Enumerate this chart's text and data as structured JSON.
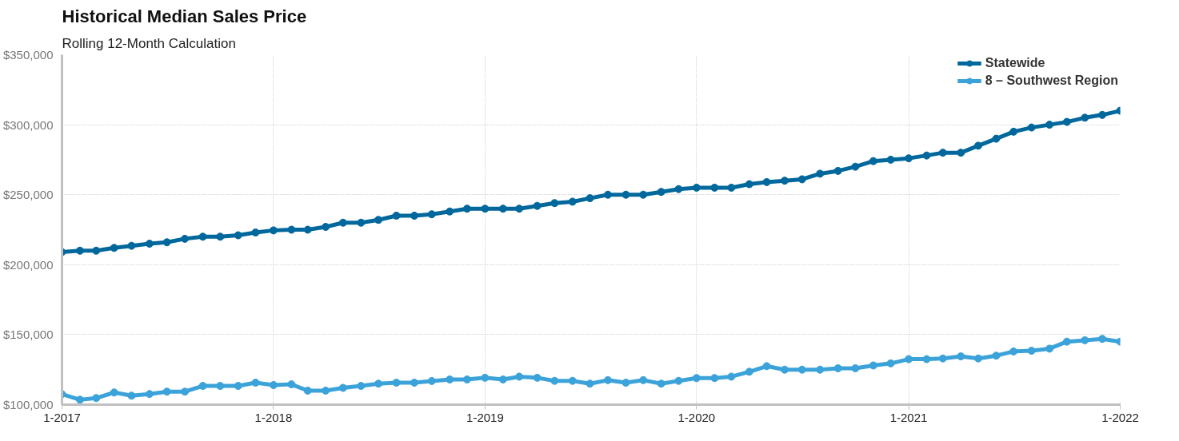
{
  "chart_data": {
    "type": "line",
    "title": "Historical Median Sales Price",
    "subtitle": "Rolling 12-Month Calculation",
    "x": [
      "2017-01",
      "2017-02",
      "2017-03",
      "2017-04",
      "2017-05",
      "2017-06",
      "2017-07",
      "2017-08",
      "2017-09",
      "2017-10",
      "2017-11",
      "2017-12",
      "2018-01",
      "2018-02",
      "2018-03",
      "2018-04",
      "2018-05",
      "2018-06",
      "2018-07",
      "2018-08",
      "2018-09",
      "2018-10",
      "2018-11",
      "2018-12",
      "2019-01",
      "2019-02",
      "2019-03",
      "2019-04",
      "2019-05",
      "2019-06",
      "2019-07",
      "2019-08",
      "2019-09",
      "2019-10",
      "2019-11",
      "2019-12",
      "2020-01",
      "2020-02",
      "2020-03",
      "2020-04",
      "2020-05",
      "2020-06",
      "2020-07",
      "2020-08",
      "2020-09",
      "2020-10",
      "2020-11",
      "2020-12",
      "2021-01",
      "2021-02",
      "2021-03",
      "2021-04",
      "2021-05",
      "2021-06",
      "2021-07",
      "2021-08",
      "2021-09",
      "2021-10",
      "2021-11",
      "2021-12",
      "2022-01"
    ],
    "series": [
      {
        "name": "Statewide",
        "color": "#00689c",
        "values": [
          209000,
          210000,
          210000,
          212000,
          213500,
          215000,
          216000,
          218500,
          220000,
          220000,
          221000,
          223000,
          224500,
          225000,
          225000,
          227000,
          230000,
          230000,
          232000,
          235000,
          235000,
          236000,
          238000,
          240000,
          240000,
          240000,
          240000,
          242000,
          244000,
          245000,
          247500,
          250000,
          250000,
          250000,
          252000,
          254000,
          255000,
          255000,
          255000,
          257500,
          259000,
          260000,
          261000,
          265000,
          267000,
          270000,
          274000,
          275000,
          276000,
          278000,
          280000,
          280000,
          285000,
          290000,
          295000,
          298000,
          300000,
          302000,
          305000,
          307000,
          310000
        ]
      },
      {
        "name": "8 – Southwest Region",
        "color": "#3ba3d9",
        "values": [
          107500,
          103500,
          104700,
          108700,
          106400,
          107600,
          109300,
          109300,
          113400,
          113400,
          113400,
          115700,
          114000,
          114500,
          110000,
          110000,
          112000,
          113400,
          115000,
          115700,
          115700,
          116900,
          118000,
          118000,
          119200,
          118000,
          120000,
          119200,
          117000,
          117000,
          115000,
          117500,
          115700,
          117500,
          115000,
          117000,
          119000,
          119000,
          120000,
          123500,
          127500,
          125000,
          125000,
          125000,
          126000,
          126000,
          128000,
          129500,
          132500,
          132500,
          133000,
          134500,
          133000,
          135000,
          138000,
          138500,
          140000,
          145000,
          146000,
          147000,
          145000
        ]
      }
    ],
    "xlim": [
      "2017-01",
      "2022-01"
    ],
    "xticks": [
      {
        "value": "2017-01",
        "label": "1-2017"
      },
      {
        "value": "2018-01",
        "label": "1-2018"
      },
      {
        "value": "2019-01",
        "label": "1-2019"
      },
      {
        "value": "2020-01",
        "label": "1-2020"
      },
      {
        "value": "2021-01",
        "label": "1-2021"
      },
      {
        "value": "2022-01",
        "label": "1-2022"
      }
    ],
    "ylim": [
      100000,
      350000
    ],
    "yticks": [
      {
        "value": 100000,
        "label": "$100,000"
      },
      {
        "value": 150000,
        "label": "$150,000"
      },
      {
        "value": 200000,
        "label": "$200,000"
      },
      {
        "value": 250000,
        "label": "$250,000"
      },
      {
        "value": 300000,
        "label": "$300,000"
      },
      {
        "value": 350000,
        "label": "$350,000"
      }
    ],
    "grid": true,
    "legend": "top right",
    "marker": "circle",
    "line_style": "solid"
  }
}
